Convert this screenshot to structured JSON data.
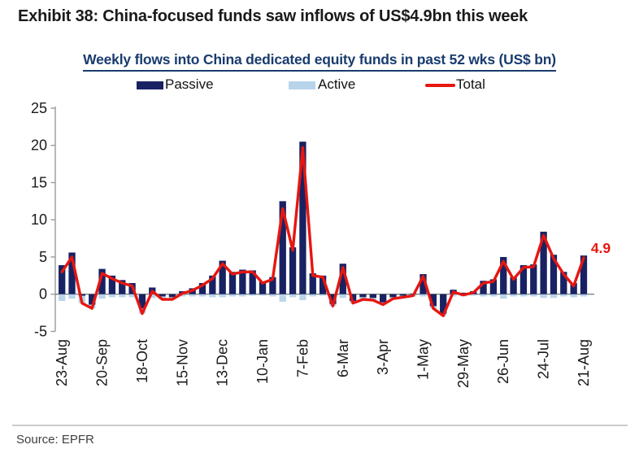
{
  "page": {
    "exhibit_title": "Exhibit 38: China-focused funds saw inflows of US$4.9bn this week",
    "source": "Source: EPFR"
  },
  "colors": {
    "header_text": "#1a1a1a",
    "title_navy": "#1a3c6e",
    "passive_navy": "#182262",
    "active_light_blue": "#b8d4ea",
    "total_red": "#e61610",
    "axis_gray": "#9a9a9a",
    "zero_line_gray": "#808080",
    "tick_text": "#1a1a1a",
    "source_gray": "#3f3f3f"
  },
  "chart_data": {
    "type": "bar",
    "subtype": "stacked bars with line overlay",
    "title": "Weekly flows into China dedicated equity funds in past 52 wks (US$ bn)",
    "xlabel": "",
    "ylabel": "",
    "ylim": [
      -5,
      25
    ],
    "grid": false,
    "legend_position": "top",
    "weeks": 53,
    "y_ticks": [
      25,
      20,
      15,
      10,
      5,
      0,
      -5
    ],
    "x_tick_labels": [
      {
        "index": 0,
        "label": "23-Aug"
      },
      {
        "index": 4,
        "label": "20-Sep"
      },
      {
        "index": 8,
        "label": "18-Oct"
      },
      {
        "index": 12,
        "label": "15-Nov"
      },
      {
        "index": 16,
        "label": "13-Dec"
      },
      {
        "index": 20,
        "label": "10-Jan"
      },
      {
        "index": 24,
        "label": "7-Feb"
      },
      {
        "index": 28,
        "label": "6-Mar"
      },
      {
        "index": 32,
        "label": "3-Apr"
      },
      {
        "index": 36,
        "label": "1-May"
      },
      {
        "index": 40,
        "label": "29-May"
      },
      {
        "index": 44,
        "label": "26-Jun"
      },
      {
        "index": 48,
        "label": "24-Jul"
      },
      {
        "index": 52,
        "label": "21-Aug"
      }
    ],
    "legend": [
      {
        "label": "Passive",
        "type": "bar",
        "color": "#182262"
      },
      {
        "label": "Active",
        "type": "bar",
        "color": "#b8d4ea"
      },
      {
        "label": "Total",
        "type": "line",
        "color": "#e61610"
      }
    ],
    "series": [
      {
        "name": "Passive",
        "type": "bar",
        "values": [
          3.9,
          5.6,
          -0.2,
          -1.4,
          3.4,
          2.5,
          1.9,
          1.5,
          -1.9,
          0.9,
          -0.3,
          -0.4,
          0.4,
          0.8,
          1.5,
          2.5,
          4.5,
          3.0,
          3.3,
          3.2,
          1.7,
          2.3,
          12.5,
          6.3,
          20.5,
          2.8,
          2.5,
          -1.3,
          4.1,
          -0.9,
          -0.4,
          -0.5,
          -1.1,
          -0.4,
          -0.2,
          0.1,
          2.7,
          -1.6,
          -2.6,
          0.6,
          0.2,
          0.4,
          1.8,
          2.0,
          5.0,
          2.3,
          3.9,
          4.0,
          8.4,
          5.3,
          3.0,
          1.5,
          5.2
        ]
      },
      {
        "name": "Active",
        "type": "bar",
        "values": [
          -0.9,
          -0.6,
          -1.0,
          -0.5,
          -0.6,
          -0.4,
          -0.4,
          -0.4,
          -0.7,
          -0.5,
          -0.4,
          -0.3,
          -0.3,
          -0.3,
          -0.3,
          -0.4,
          -0.4,
          -0.3,
          -0.3,
          -0.2,
          -0.2,
          -0.3,
          -1.0,
          -0.4,
          -0.8,
          -0.3,
          -0.2,
          -0.3,
          -0.5,
          -0.3,
          -0.3,
          -0.3,
          -0.3,
          -0.2,
          -0.2,
          -0.3,
          -0.3,
          -0.3,
          -0.3,
          -0.3,
          -0.3,
          -0.2,
          -0.3,
          -0.3,
          -0.6,
          -0.3,
          -0.3,
          -0.3,
          -0.5,
          -0.5,
          -0.3,
          -0.4,
          -0.3
        ]
      },
      {
        "name": "Total",
        "type": "line",
        "values": [
          3.0,
          5.0,
          -1.2,
          -1.9,
          2.8,
          2.1,
          1.5,
          1.1,
          -2.6,
          0.4,
          -0.7,
          -0.7,
          0.1,
          0.5,
          1.2,
          2.1,
          4.1,
          2.7,
          3.0,
          3.0,
          1.5,
          2.0,
          11.5,
          5.9,
          19.7,
          2.5,
          2.3,
          -1.6,
          3.6,
          -1.2,
          -0.7,
          -0.8,
          -1.4,
          -0.6,
          -0.4,
          -0.2,
          2.4,
          -1.9,
          -2.9,
          0.3,
          -0.1,
          0.2,
          1.5,
          1.7,
          4.4,
          2.0,
          3.6,
          3.7,
          7.9,
          4.8,
          2.7,
          1.1,
          4.9
        ]
      }
    ],
    "annotation": {
      "text": "4.9",
      "color": "#e61610",
      "refers_to": "last Total value"
    }
  }
}
